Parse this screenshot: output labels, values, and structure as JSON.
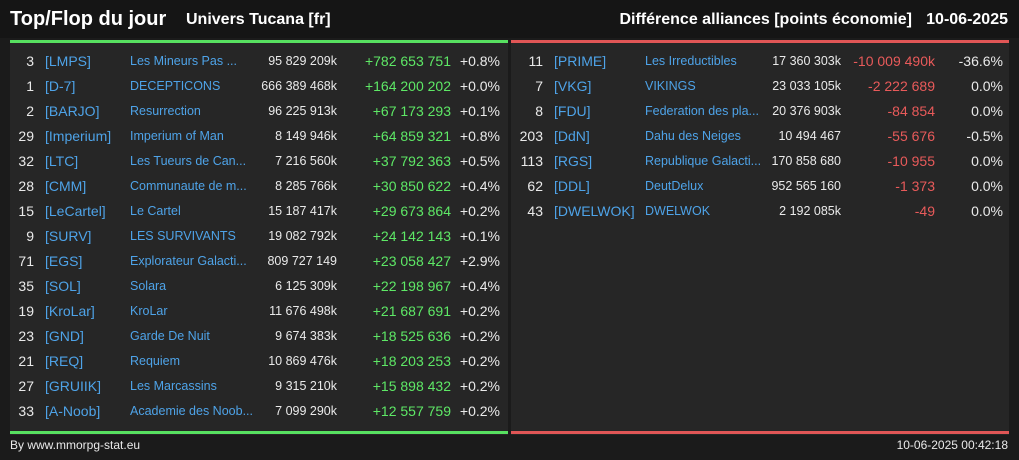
{
  "header": {
    "title": "Top/Flop du jour",
    "universe": "Univers Tucana [fr]",
    "metric": "Différence alliances [points économie]",
    "date": "10-06-2025"
  },
  "colors": {
    "positive": "#5ee866",
    "negative": "#e85a5a",
    "tag": "#4ea3e8"
  },
  "top": [
    {
      "rank": "3",
      "tag": "[LMPS]",
      "name": "Les Mineurs Pas ...",
      "points": "95 829 209k",
      "diff": "+782 653 751",
      "pct": "+0.8%"
    },
    {
      "rank": "1",
      "tag": "[D-7]",
      "name": "DECEPTICONS",
      "points": "666 389 468k",
      "diff": "+164 200 202",
      "pct": "+0.0%"
    },
    {
      "rank": "2",
      "tag": "[BARJO]",
      "name": "Resurrection",
      "points": "96 225 913k",
      "diff": "+67 173 293",
      "pct": "+0.1%"
    },
    {
      "rank": "29",
      "tag": "[Imperium]",
      "name": "Imperium of Man",
      "points": "8 149 946k",
      "diff": "+64 859 321",
      "pct": "+0.8%"
    },
    {
      "rank": "32",
      "tag": "[LTC]",
      "name": "Les Tueurs de Can...",
      "points": "7 216 560k",
      "diff": "+37 792 363",
      "pct": "+0.5%"
    },
    {
      "rank": "28",
      "tag": "[CMM]",
      "name": "Communaute de m...",
      "points": "8 285 766k",
      "diff": "+30 850 622",
      "pct": "+0.4%"
    },
    {
      "rank": "15",
      "tag": "[LeCartel]",
      "name": "Le Cartel",
      "points": "15 187 417k",
      "diff": "+29 673 864",
      "pct": "+0.2%"
    },
    {
      "rank": "9",
      "tag": "[SURV]",
      "name": "LES SURVIVANTS",
      "points": "19 082 792k",
      "diff": "+24 142 143",
      "pct": "+0.1%"
    },
    {
      "rank": "71",
      "tag": "[EGS]",
      "name": "Explorateur Galacti...",
      "points": "809 727 149",
      "diff": "+23 058 427",
      "pct": "+2.9%"
    },
    {
      "rank": "35",
      "tag": "[SOL]",
      "name": "Solara",
      "points": "6 125 309k",
      "diff": "+22 198 967",
      "pct": "+0.4%"
    },
    {
      "rank": "19",
      "tag": "[KroLar]",
      "name": "KroLar",
      "points": "11 676 498k",
      "diff": "+21 687 691",
      "pct": "+0.2%"
    },
    {
      "rank": "23",
      "tag": "[GND]",
      "name": "Garde De Nuit",
      "points": "9 674 383k",
      "diff": "+18 525 636",
      "pct": "+0.2%"
    },
    {
      "rank": "21",
      "tag": "[REQ]",
      "name": "Requiem",
      "points": "10 869 476k",
      "diff": "+18 203 253",
      "pct": "+0.2%"
    },
    {
      "rank": "27",
      "tag": "[GRUIIK]",
      "name": "Les Marcassins",
      "points": "9 315 210k",
      "diff": "+15 898 432",
      "pct": "+0.2%"
    },
    {
      "rank": "33",
      "tag": "[A-Noob]",
      "name": "Academie des Noob...",
      "points": "7 099 290k",
      "diff": "+12 557 759",
      "pct": "+0.2%"
    }
  ],
  "flop": [
    {
      "rank": "11",
      "tag": "[PRIME]",
      "name": "Les Irreductibles",
      "points": "17 360 303k",
      "diff": "-10 009 490k",
      "pct": "-36.6%"
    },
    {
      "rank": "7",
      "tag": "[VKG]",
      "name": "VIKINGS",
      "points": "23 033 105k",
      "diff": "-2 222 689",
      "pct": "0.0%"
    },
    {
      "rank": "8",
      "tag": "[FDU]",
      "name": "Federation des pla...",
      "points": "20 376 903k",
      "diff": "-84 854",
      "pct": "0.0%"
    },
    {
      "rank": "203",
      "tag": "[DdN]",
      "name": "Dahu des Neiges",
      "points": "10 494 467",
      "diff": "-55 676",
      "pct": "-0.5%"
    },
    {
      "rank": "113",
      "tag": "[RGS]",
      "name": "Republique Galacti...",
      "points": "170 858 680",
      "diff": "-10 955",
      "pct": "0.0%"
    },
    {
      "rank": "62",
      "tag": "[DDL]",
      "name": "DeutDelux",
      "points": "952 565 160",
      "diff": "-1 373",
      "pct": "0.0%"
    },
    {
      "rank": "43",
      "tag": "[DWELWOK]",
      "name": "DWELWOK",
      "points": "2 192 085k",
      "diff": "-49",
      "pct": "0.0%"
    }
  ],
  "footer": {
    "source": "By www.mmorpg-stat.eu",
    "timestamp": "10-06-2025 00:42:18"
  }
}
